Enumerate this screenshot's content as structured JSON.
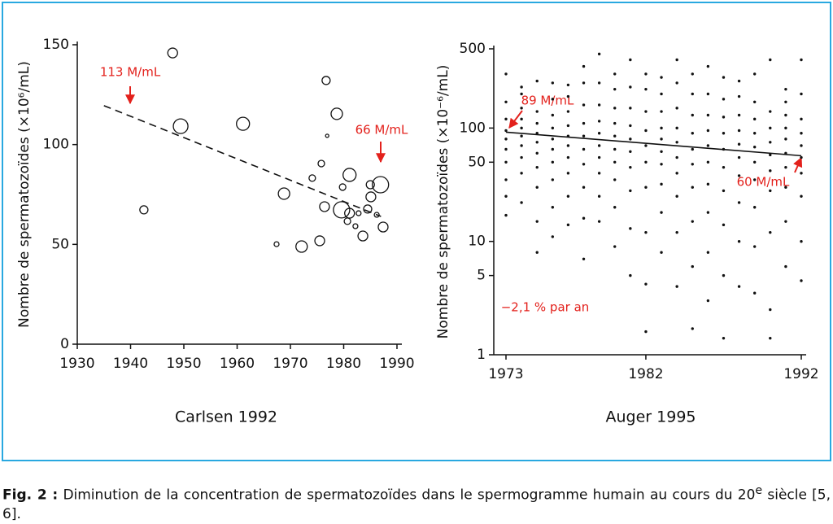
{
  "chart_data": [
    {
      "type": "scatter",
      "title": "Carlsen 1992",
      "ylabel": "Nombre de spermatozoïdes (×10⁶/mL)",
      "xlim": [
        1930,
        1990
      ],
      "xticks": [
        1930,
        1940,
        1950,
        1960,
        1970,
        1980,
        1990
      ],
      "ylim": [
        0,
        150
      ],
      "yticks": [
        0,
        50,
        100,
        150
      ],
      "log_y": false,
      "color": "#111111",
      "bubble": true,
      "x": [
        1947.9,
        1942.5,
        1949.4,
        1961.1,
        1968.8,
        1967.4,
        1972.1,
        1975.5,
        1974.1,
        1975.8,
        1976.7,
        1976.9,
        1978.7,
        1976.4,
        1979.6,
        1981.1,
        1979.8,
        1980.7,
        1981.1,
        1982.2,
        1982.8,
        1983.6,
        1984.5,
        1985.1,
        1985.0,
        1986.2,
        1986.9,
        1987.4
      ],
      "values": [
        145.9,
        67.3,
        109.2,
        110.4,
        75.4,
        50.1,
        48.9,
        51.8,
        83.2,
        90.5,
        132.1,
        104.4,
        115.4,
        68.9,
        67.3,
        84.8,
        78.7,
        61.6,
        65.6,
        59.1,
        65.6,
        54.2,
        67.7,
        73.8,
        79.9,
        64.8,
        79.9,
        58.7
      ],
      "sizes": [
        6,
        5,
        9,
        8,
        7,
        3,
        7,
        6,
        4,
        4,
        5,
        2,
        7,
        6,
        10,
        8,
        4,
        4,
        6,
        3,
        3,
        6,
        5,
        6,
        5,
        3,
        10,
        6
      ],
      "trend": {
        "x": [
          1935,
          1987
        ],
        "values": [
          119.5,
          64
        ],
        "dashed": true
      },
      "annotations": [
        "113 M/mL",
        "66 M/mL"
      ]
    },
    {
      "type": "scatter",
      "title": "Auger 1995",
      "ylabel": "Nombre de spermatozoïdes (×10⁻⁶/mL)",
      "xlim": [
        1973,
        1992
      ],
      "xticks": [
        1973,
        1982,
        1992
      ],
      "ylim": [
        1,
        500
      ],
      "yticks": [
        1,
        5,
        10,
        50,
        100,
        500
      ],
      "log_y": true,
      "color": "#111111",
      "bubble": false,
      "x": [
        1973,
        1973,
        1973,
        1973,
        1973,
        1973,
        1973,
        1973,
        1973,
        1973,
        1974,
        1974,
        1974,
        1974,
        1974,
        1974,
        1974,
        1974,
        1974,
        1974,
        1975,
        1975,
        1975,
        1975,
        1975,
        1975,
        1975,
        1975,
        1975,
        1975,
        1976,
        1976,
        1976,
        1976,
        1976,
        1976,
        1976,
        1976,
        1976,
        1976,
        1977,
        1977,
        1977,
        1977,
        1977,
        1977,
        1977,
        1977,
        1977,
        1977,
        1978,
        1978,
        1978,
        1978,
        1978,
        1978,
        1978,
        1978,
        1978,
        1978,
        1979,
        1979,
        1979,
        1979,
        1979,
        1979,
        1979,
        1979,
        1979,
        1979,
        1980,
        1980,
        1980,
        1980,
        1980,
        1980,
        1980,
        1980,
        1980,
        1980,
        1981,
        1981,
        1981,
        1981,
        1981,
        1981,
        1981,
        1981,
        1981,
        1981,
        1982,
        1982,
        1982,
        1982,
        1982,
        1982,
        1982,
        1982,
        1982,
        1982,
        1983,
        1983,
        1983,
        1983,
        1983,
        1983,
        1983,
        1983,
        1983,
        1983,
        1984,
        1984,
        1984,
        1984,
        1984,
        1984,
        1984,
        1984,
        1984,
        1984,
        1985,
        1985,
        1985,
        1985,
        1985,
        1985,
        1985,
        1985,
        1985,
        1985,
        1986,
        1986,
        1986,
        1986,
        1986,
        1986,
        1986,
        1986,
        1986,
        1986,
        1987,
        1987,
        1987,
        1987,
        1987,
        1987,
        1987,
        1987,
        1987,
        1987,
        1988,
        1988,
        1988,
        1988,
        1988,
        1988,
        1988,
        1988,
        1988,
        1988,
        1989,
        1989,
        1989,
        1989,
        1989,
        1989,
        1989,
        1989,
        1989,
        1989,
        1990,
        1990,
        1990,
        1990,
        1990,
        1990,
        1990,
        1990,
        1990,
        1990,
        1991,
        1991,
        1991,
        1991,
        1991,
        1991,
        1991,
        1991,
        1991,
        1991,
        1992,
        1992,
        1992,
        1992,
        1992,
        1992,
        1992,
        1992,
        1992,
        1992
      ],
      "values": [
        17,
        25,
        35,
        50,
        65,
        80,
        95,
        120,
        170,
        300,
        22,
        40,
        55,
        70,
        85,
        100,
        120,
        150,
        200,
        230,
        8,
        15,
        30,
        45,
        60,
        75,
        90,
        110,
        140,
        260,
        11,
        20,
        35,
        50,
        65,
        80,
        100,
        130,
        180,
        250,
        14,
        25,
        40,
        55,
        70,
        85,
        105,
        140,
        190,
        240,
        7,
        16,
        30,
        48,
        65,
        85,
        110,
        160,
        250,
        350,
        15,
        25,
        40,
        55,
        70,
        90,
        115,
        160,
        250,
        450,
        9,
        20,
        35,
        50,
        65,
        85,
        110,
        150,
        220,
        300,
        5,
        13,
        28,
        45,
        62,
        80,
        105,
        150,
        230,
        400,
        1.6,
        4.2,
        12,
        30,
        50,
        70,
        95,
        140,
        220,
        300,
        8,
        18,
        32,
        48,
        62,
        80,
        100,
        140,
        200,
        280,
        4,
        12,
        25,
        40,
        55,
        75,
        100,
        150,
        250,
        400,
        1.7,
        6,
        15,
        30,
        48,
        65,
        90,
        130,
        200,
        300,
        3,
        8,
        18,
        32,
        50,
        70,
        95,
        130,
        200,
        350,
        1.4,
        5,
        14,
        28,
        45,
        65,
        90,
        125,
        180,
        280,
        4,
        10,
        22,
        38,
        55,
        72,
        95,
        130,
        190,
        260,
        3.5,
        9,
        20,
        35,
        50,
        68,
        90,
        120,
        170,
        300,
        1.4,
        2.5,
        12,
        28,
        42,
        58,
        75,
        100,
        140,
        400,
        6,
        15,
        30,
        45,
        60,
        80,
        100,
        130,
        170,
        220,
        4.5,
        10,
        25,
        40,
        55,
        70,
        90,
        120,
        200,
        400
      ],
      "trend": {
        "x": [
          1973,
          1992
        ],
        "values": [
          92,
          57
        ],
        "dashed": false
      },
      "annotations": [
        "89 M/mL",
        "60 M/mL",
        "−2,1 % par an"
      ]
    }
  ],
  "caption": {
    "label": "Fig. 2 :",
    "text": "Diminution de la concentration de spermatozoïdes dans le spermogramme humain au cours du 20",
    "superscript": "e",
    "text_end": " siècle [5, 6]."
  }
}
